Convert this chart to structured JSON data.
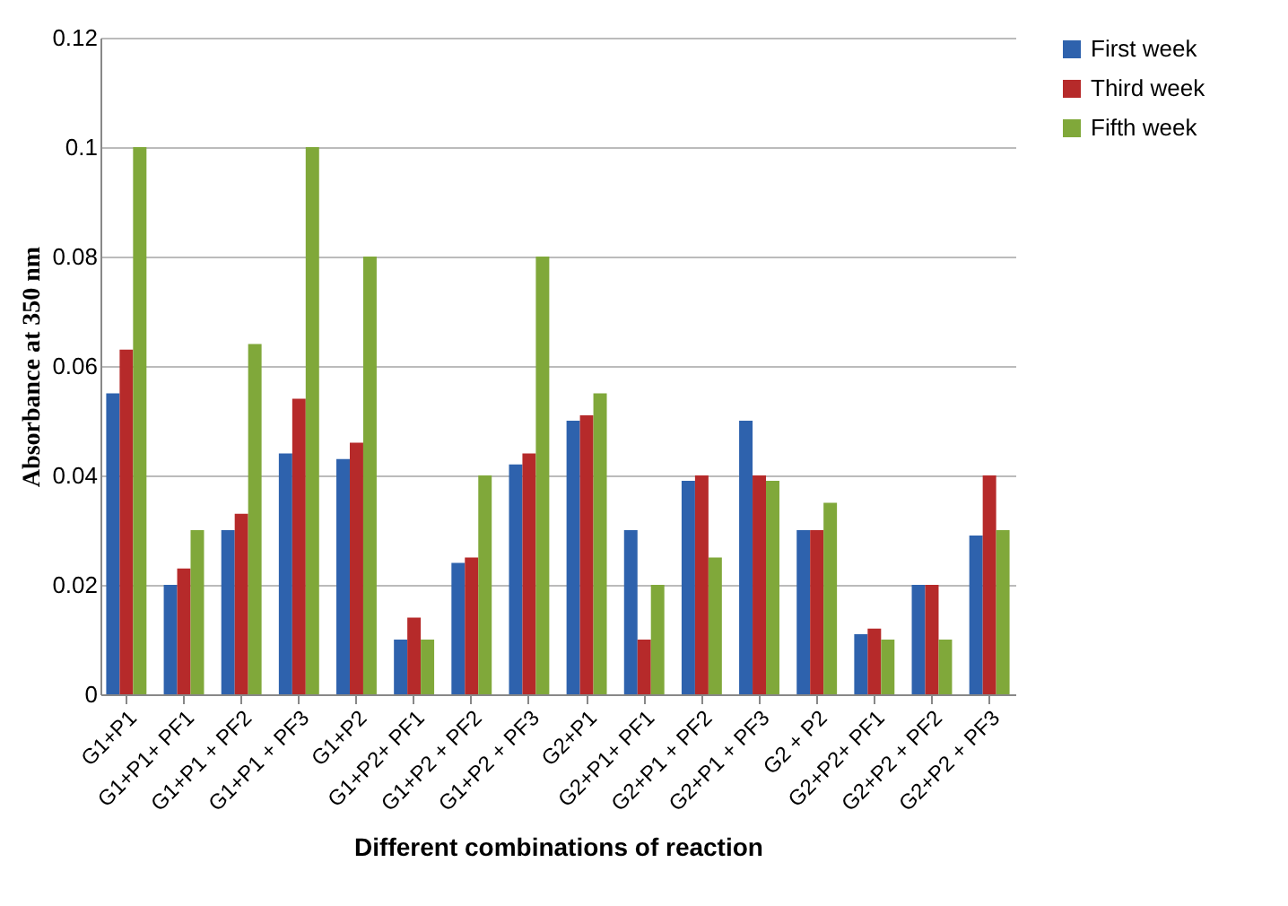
{
  "chart_data": {
    "type": "bar",
    "xlabel": "Different combinations of reaction",
    "ylabel": "Absorbance at 350 nm",
    "categories": [
      "G1+P1",
      "G1+P1+ PF1",
      "G1+P1 + PF2",
      "G1+P1 + PF3",
      "G1+P2",
      "G1+P2+ PF1",
      "G1+P2 + PF2",
      "G1+P2 + PF3",
      "G2+P1",
      "G2+P1+ PF1",
      "G2+P1 + PF2",
      "G2+P1 + PF3",
      "G2 + P2",
      "G2+P2+ PF1",
      "G2+P2 + PF2",
      "G2+P2 + PF3"
    ],
    "series": [
      {
        "name": "First week",
        "color": "#2e62ad",
        "values": [
          0.055,
          0.02,
          0.03,
          0.044,
          0.043,
          0.01,
          0.024,
          0.042,
          0.05,
          0.03,
          0.039,
          0.05,
          0.03,
          0.011,
          0.02,
          0.029
        ]
      },
      {
        "name": "Third week",
        "color": "#b62a2a",
        "values": [
          0.063,
          0.023,
          0.033,
          0.054,
          0.046,
          0.014,
          0.025,
          0.044,
          0.051,
          0.01,
          0.04,
          0.04,
          0.03,
          0.012,
          0.02,
          0.04
        ]
      },
      {
        "name": "Fifth week",
        "color": "#80a83a",
        "values": [
          0.1,
          0.03,
          0.064,
          0.1,
          0.08,
          0.01,
          0.04,
          0.08,
          0.055,
          0.02,
          0.025,
          0.039,
          0.035,
          0.01,
          0.01,
          0.03
        ]
      }
    ],
    "ylim": [
      0,
      0.12
    ],
    "yticks": [
      0,
      0.02,
      0.04,
      0.06,
      0.08,
      0.1,
      0.12
    ],
    "grid": "y",
    "legend": "right"
  }
}
